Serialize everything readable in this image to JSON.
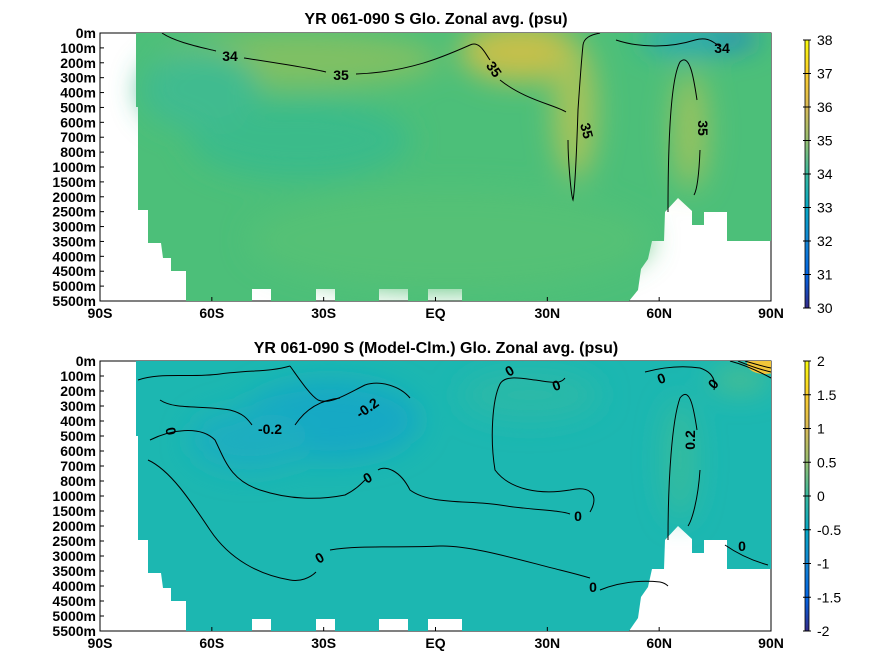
{
  "chart_data": [
    {
      "type": "heatmap",
      "title": "YR 061-090 S Glo. Zonal avg. (psu)",
      "x_ticks": [
        "90S",
        "60S",
        "30S",
        "EQ",
        "30N",
        "60N",
        "90N"
      ],
      "x_range": [
        -90,
        90
      ],
      "y_ticks": [
        "0m",
        "100m",
        "200m",
        "300m",
        "400m",
        "500m",
        "600m",
        "700m",
        "800m",
        "1000m",
        "1500m",
        "2000m",
        "2500m",
        "3000m",
        "3500m",
        "4000m",
        "4500m",
        "5000m",
        "5500m"
      ],
      "y_reversed": true,
      "colorbar": {
        "min": 30,
        "max": 38,
        "ticks": [
          "30",
          "31",
          "32",
          "33",
          "34",
          "35",
          "36",
          "37",
          "38"
        ]
      },
      "colormap": "parula",
      "contour_labels": [
        "34",
        "35",
        "35",
        "35",
        "35",
        "34"
      ]
    },
    {
      "type": "heatmap",
      "title": "YR 061-090 S (Model-Clm.) Glo. Zonal avg. (psu)",
      "x_ticks": [
        "90S",
        "60S",
        "30S",
        "EQ",
        "30N",
        "60N",
        "90N"
      ],
      "x_range": [
        -90,
        90
      ],
      "y_ticks": [
        "0m",
        "100m",
        "200m",
        "300m",
        "400m",
        "500m",
        "600m",
        "700m",
        "800m",
        "1000m",
        "1500m",
        "2000m",
        "2500m",
        "3000m",
        "3500m",
        "4000m",
        "4500m",
        "5000m",
        "5500m"
      ],
      "y_reversed": true,
      "colorbar": {
        "min": -2,
        "max": 2,
        "ticks": [
          "-2",
          "-1.5",
          "-1",
          "-0.5",
          "0",
          "0.5",
          "1",
          "1.5",
          "2"
        ]
      },
      "colormap": "parula",
      "contour_labels": [
        "0",
        "-0.2",
        "-0.2",
        "0",
        "0",
        "0",
        "0",
        "0",
        "0",
        "0",
        "0",
        "0.2",
        "0"
      ]
    }
  ]
}
